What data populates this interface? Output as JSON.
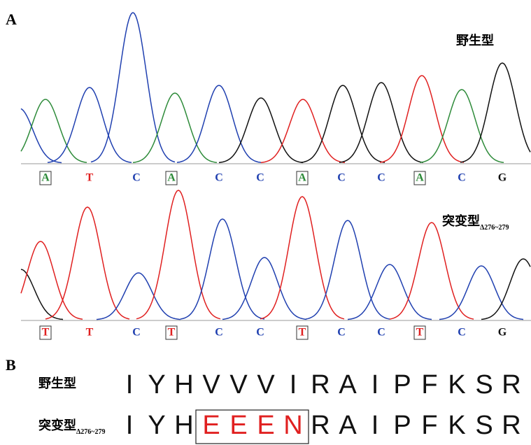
{
  "panel_a": {
    "label": "A",
    "wild_type": {
      "label": "野生型",
      "bases": [
        {
          "base": "A",
          "boxed": true
        },
        {
          "base": "T",
          "boxed": false
        },
        {
          "base": "C",
          "boxed": false
        },
        {
          "base": "A",
          "boxed": true
        },
        {
          "base": "C",
          "boxed": false
        },
        {
          "base": "C",
          "boxed": false
        },
        {
          "base": "A",
          "boxed": true
        },
        {
          "base": "C",
          "boxed": false
        },
        {
          "base": "C",
          "boxed": false
        },
        {
          "base": "A",
          "boxed": true
        },
        {
          "base": "C",
          "boxed": false
        },
        {
          "base": "G",
          "boxed": false
        }
      ]
    },
    "mutant": {
      "label": "突变型",
      "subscript": "Δ276~279",
      "bases": [
        {
          "base": "T",
          "boxed": true
        },
        {
          "base": "T",
          "boxed": false
        },
        {
          "base": "C",
          "boxed": false
        },
        {
          "base": "T",
          "boxed": true
        },
        {
          "base": "C",
          "boxed": false
        },
        {
          "base": "C",
          "boxed": false
        },
        {
          "base": "T",
          "boxed": true
        },
        {
          "base": "C",
          "boxed": false
        },
        {
          "base": "C",
          "boxed": false
        },
        {
          "base": "T",
          "boxed": true
        },
        {
          "base": "C",
          "boxed": false
        },
        {
          "base": "G",
          "boxed": false
        }
      ]
    }
  },
  "panel_b": {
    "label": "B",
    "wild_type": {
      "label": "野生型",
      "residues": [
        {
          "aa": "I",
          "mutated": false
        },
        {
          "aa": "Y",
          "mutated": false
        },
        {
          "aa": "H",
          "mutated": false
        },
        {
          "aa": "V",
          "mutated": false
        },
        {
          "aa": "V",
          "mutated": false
        },
        {
          "aa": "V",
          "mutated": false
        },
        {
          "aa": "I",
          "mutated": false
        },
        {
          "aa": "R",
          "mutated": false
        },
        {
          "aa": "A",
          "mutated": false
        },
        {
          "aa": "I",
          "mutated": false
        },
        {
          "aa": "P",
          "mutated": false
        },
        {
          "aa": "F",
          "mutated": false
        },
        {
          "aa": "K",
          "mutated": false
        },
        {
          "aa": "S",
          "mutated": false
        },
        {
          "aa": "R",
          "mutated": false
        }
      ]
    },
    "mutant": {
      "label": "突变型",
      "subscript": "Δ276~279",
      "residues": [
        {
          "aa": "I",
          "mutated": false
        },
        {
          "aa": "Y",
          "mutated": false
        },
        {
          "aa": "H",
          "mutated": false
        },
        {
          "aa": "E",
          "mutated": true
        },
        {
          "aa": "E",
          "mutated": true
        },
        {
          "aa": "E",
          "mutated": true
        },
        {
          "aa": "N",
          "mutated": true
        },
        {
          "aa": "R",
          "mutated": false
        },
        {
          "aa": "A",
          "mutated": false
        },
        {
          "aa": "I",
          "mutated": false
        },
        {
          "aa": "P",
          "mutated": false
        },
        {
          "aa": "F",
          "mutated": false
        },
        {
          "aa": "K",
          "mutated": false
        },
        {
          "aa": "S",
          "mutated": false
        },
        {
          "aa": "R",
          "mutated": false
        }
      ]
    }
  }
}
